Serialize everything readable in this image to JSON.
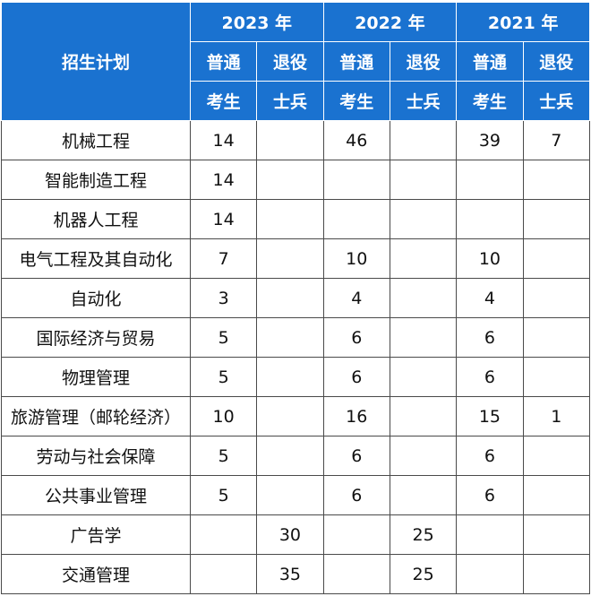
{
  "header": {
    "corner": "招生计划",
    "years": [
      "2023 年",
      "2022 年",
      "2021 年"
    ],
    "sub_top": [
      "普通",
      "退役"
    ],
    "sub_bottom": [
      "考生",
      "士兵"
    ]
  },
  "rows": [
    {
      "name": "机械工程",
      "values": [
        "14",
        "",
        "46",
        "",
        "39",
        "7"
      ]
    },
    {
      "name": "智能制造工程",
      "values": [
        "14",
        "",
        "",
        "",
        "",
        ""
      ]
    },
    {
      "name": "机器人工程",
      "values": [
        "14",
        "",
        "",
        "",
        "",
        ""
      ]
    },
    {
      "name": "电气工程及其自动化",
      "values": [
        "7",
        "",
        "10",
        "",
        "10",
        ""
      ]
    },
    {
      "name": "自动化",
      "values": [
        "3",
        "",
        "4",
        "",
        "4",
        ""
      ]
    },
    {
      "name": "国际经济与贸易",
      "values": [
        "5",
        "",
        "6",
        "",
        "6",
        ""
      ]
    },
    {
      "name": "物理管理",
      "values": [
        "5",
        "",
        "6",
        "",
        "6",
        ""
      ]
    },
    {
      "name": "旅游管理（邮轮经济）",
      "values": [
        "10",
        "",
        "16",
        "",
        "15",
        "1"
      ]
    },
    {
      "name": "劳动与社会保障",
      "values": [
        "5",
        "",
        "6",
        "",
        "6",
        ""
      ]
    },
    {
      "name": "公共事业管理",
      "values": [
        "5",
        "",
        "6",
        "",
        "6",
        ""
      ]
    },
    {
      "name": "广告学",
      "values": [
        "",
        "30",
        "",
        "25",
        "",
        ""
      ]
    },
    {
      "name": "交通管理",
      "values": [
        "",
        "35",
        "",
        "25",
        "",
        ""
      ]
    }
  ]
}
